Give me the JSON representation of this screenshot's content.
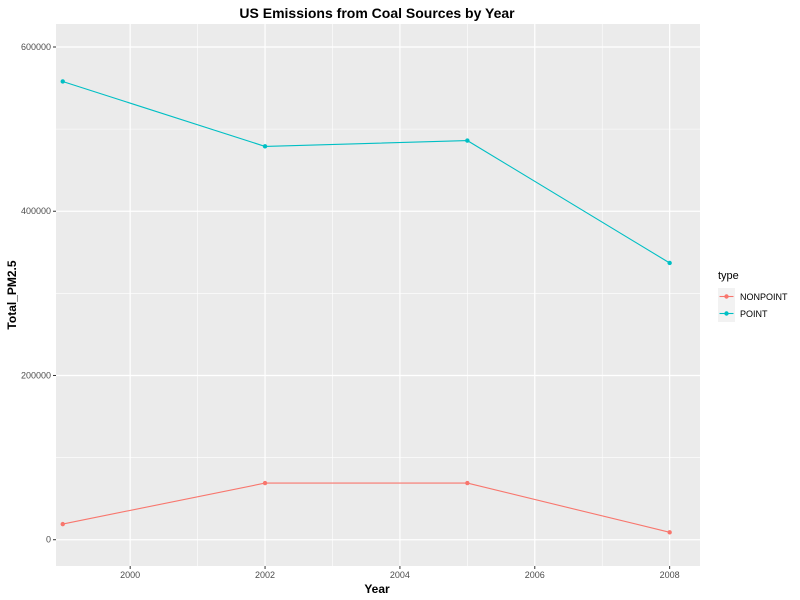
{
  "chart_data": {
    "type": "line",
    "title": "US Emissions from Coal Sources by Year",
    "xlabel": "Year",
    "ylabel": "Total_PM2.5",
    "x": [
      1999,
      2002,
      2005,
      2008
    ],
    "xlim": [
      1998.9,
      2008.45
    ],
    "ylim": [
      -32000,
      628000
    ],
    "xticks": [
      2000,
      2002,
      2004,
      2006,
      2008
    ],
    "yticks": [
      0,
      200000,
      400000,
      600000
    ],
    "grid": true,
    "legend_title": "type",
    "legend_position": "right",
    "series": [
      {
        "name": "NONPOINT",
        "color": "#F8766D",
        "values": [
          19000,
          69000,
          69000,
          9000
        ]
      },
      {
        "name": "POINT",
        "color": "#00BFC4",
        "values": [
          558000,
          479000,
          486000,
          337000
        ]
      }
    ]
  }
}
